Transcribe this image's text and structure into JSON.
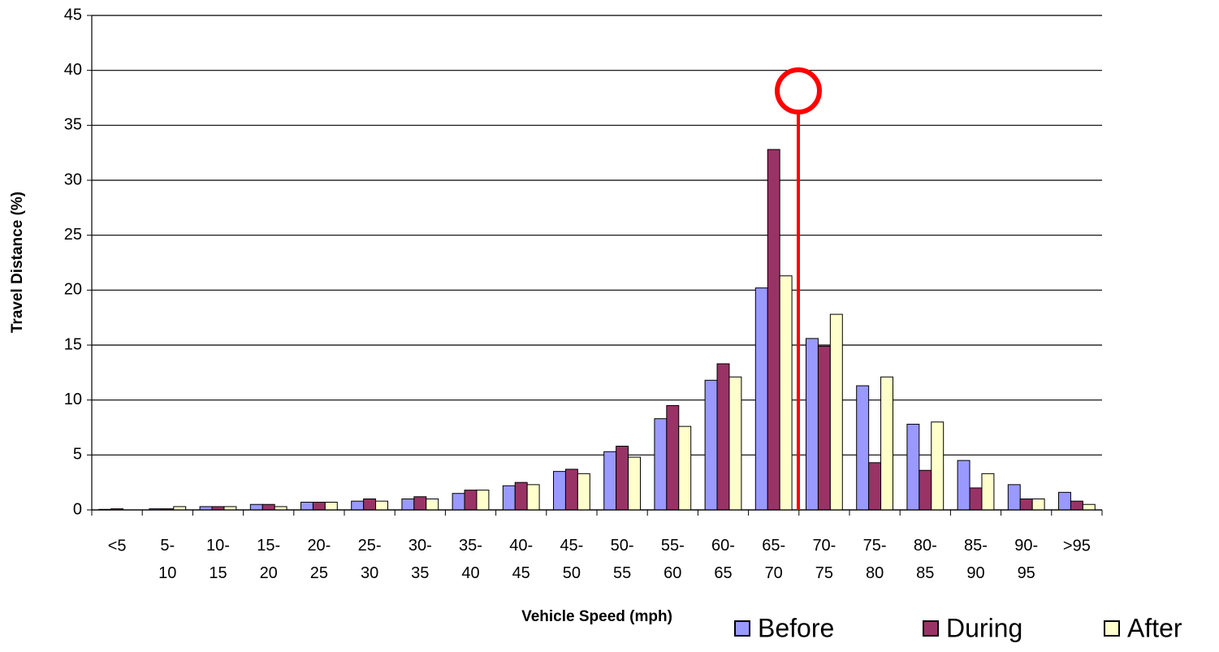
{
  "chart_data": {
    "type": "bar",
    "x_label": "Vehicle Speed (mph)",
    "y_label": "Travel Distance (%)",
    "categories": [
      "<5",
      "5- 10",
      "10- 15",
      "15- 20",
      "20- 25",
      "25- 30",
      "30- 35",
      "35- 40",
      "40- 45",
      "45- 50",
      "50- 55",
      "55- 60",
      "60- 65",
      "65- 70",
      "70- 75",
      "75- 80",
      "80- 85",
      "85- 90",
      "90- 95",
      ">95"
    ],
    "series": [
      {
        "name": "Before",
        "color": "#9999ff",
        "values": [
          0.05,
          0.1,
          0.3,
          0.5,
          0.7,
          0.8,
          1.0,
          1.5,
          2.2,
          3.5,
          5.3,
          8.3,
          11.8,
          20.2,
          15.6,
          11.3,
          7.8,
          4.5,
          2.3,
          1.6
        ]
      },
      {
        "name": "During",
        "color": "#993366",
        "values": [
          0.1,
          0.1,
          0.3,
          0.5,
          0.7,
          1.0,
          1.2,
          1.8,
          2.5,
          3.7,
          5.8,
          9.5,
          13.3,
          32.8,
          14.9,
          4.3,
          3.6,
          2.0,
          1.0,
          0.8
        ]
      },
      {
        "name": "After",
        "color": "#ffffcc",
        "values": [
          0,
          0.3,
          0.3,
          0.3,
          0.7,
          0.8,
          1.0,
          1.8,
          2.3,
          3.3,
          4.8,
          7.6,
          12.1,
          21.3,
          17.8,
          12.1,
          8.0,
          3.3,
          1.0,
          0.5
        ]
      }
    ],
    "ylim": [
      0,
      45
    ],
    "yticks": [
      0,
      5,
      10,
      15,
      20,
      25,
      30,
      35,
      40,
      45
    ],
    "grid": true
  }
}
